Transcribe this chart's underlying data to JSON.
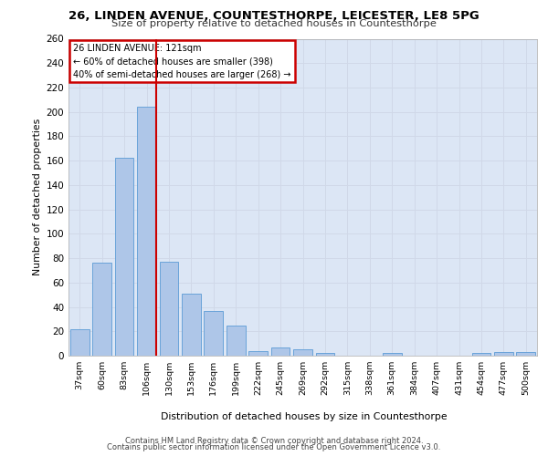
{
  "title1": "26, LINDEN AVENUE, COUNTESTHORPE, LEICESTER, LE8 5PG",
  "title2": "Size of property relative to detached houses in Countesthorpe",
  "xlabel": "Distribution of detached houses by size in Countesthorpe",
  "ylabel": "Number of detached properties",
  "categories": [
    "37sqm",
    "60sqm",
    "83sqm",
    "106sqm",
    "130sqm",
    "153sqm",
    "176sqm",
    "199sqm",
    "222sqm",
    "245sqm",
    "269sqm",
    "292sqm",
    "315sqm",
    "338sqm",
    "361sqm",
    "384sqm",
    "407sqm",
    "431sqm",
    "454sqm",
    "477sqm",
    "500sqm"
  ],
  "values": [
    22,
    76,
    162,
    204,
    77,
    51,
    37,
    25,
    4,
    7,
    5,
    2,
    0,
    0,
    2,
    0,
    0,
    0,
    2,
    3,
    3
  ],
  "bar_color": "#aec6e8",
  "bar_edgecolor": "#5b9bd5",
  "vline_x": 3.42,
  "annotation_line1": "26 LINDEN AVENUE: 121sqm",
  "annotation_line2": "← 60% of detached houses are smaller (398)",
  "annotation_line3": "40% of semi-detached houses are larger (268) →",
  "annotation_box_color": "#ffffff",
  "annotation_box_edgecolor": "#cc0000",
  "annotation_text_color": "#000000",
  "vline_color": "#cc0000",
  "grid_color": "#d0d8e8",
  "background_color": "#dce6f5",
  "footer_line1": "Contains HM Land Registry data © Crown copyright and database right 2024.",
  "footer_line2": "Contains public sector information licensed under the Open Government Licence v3.0.",
  "ylim": [
    0,
    260
  ],
  "yticks": [
    0,
    20,
    40,
    60,
    80,
    100,
    120,
    140,
    160,
    180,
    200,
    220,
    240,
    260
  ]
}
